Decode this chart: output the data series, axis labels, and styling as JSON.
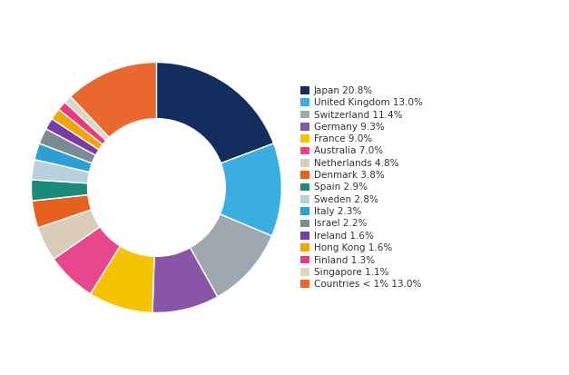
{
  "labels": [
    "Japan 20.8%",
    "United Kingdom 13.0%",
    "Switzerland 11.4%",
    "Germany 9.3%",
    "France 9.0%",
    "Australia 7.0%",
    "Netherlands 4.8%",
    "Denmark 3.8%",
    "Spain 2.9%",
    "Sweden 2.8%",
    "Italy 2.3%",
    "Israel 2.2%",
    "Ireland 1.6%",
    "Hong Kong 1.6%",
    "Finland 1.3%",
    "Singapore 1.1%",
    "Countries < 1% 13.0%"
  ],
  "values": [
    20.8,
    13.0,
    11.4,
    9.3,
    9.0,
    7.0,
    4.8,
    3.8,
    2.9,
    2.8,
    2.3,
    2.2,
    1.6,
    1.6,
    1.3,
    1.1,
    13.0
  ],
  "colors": [
    "#132d5e",
    "#3aaee0",
    "#9ea8b0",
    "#8855a8",
    "#f5c200",
    "#e8478b",
    "#d9cdb8",
    "#e8601e",
    "#1a8a7a",
    "#b8cfe0",
    "#2e9fd4",
    "#7a8a95",
    "#7a3aa8",
    "#f0a800",
    "#f03880",
    "#e0d5be",
    "#e86830"
  ],
  "background_color": "#ffffff",
  "legend_fontsize": 7.5,
  "donut_width": 0.45
}
